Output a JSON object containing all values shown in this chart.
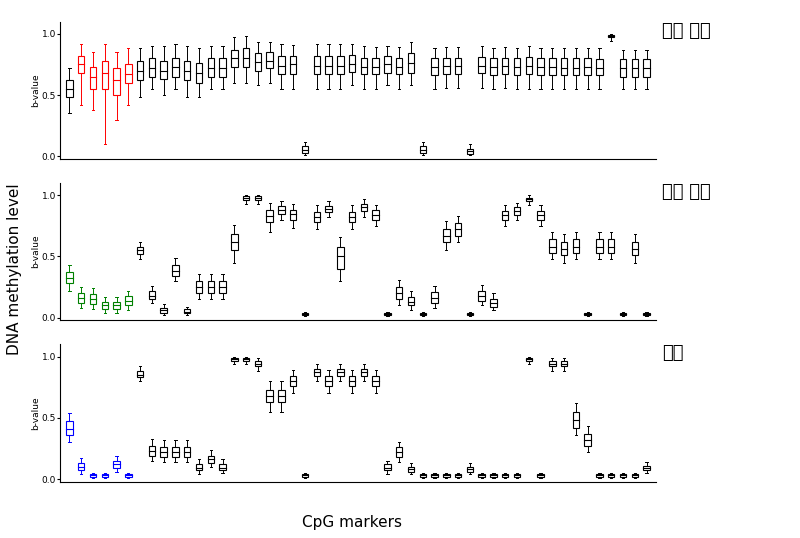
{
  "title_cancer": "간암 조직",
  "title_normal": "정상 조직",
  "title_blood": "혈액",
  "xlabel": "CpG markers",
  "ylabel": "DNA methylation level",
  "bvalue_label": "b-value",
  "n_markers": 50,
  "red_indices": [
    1,
    3,
    5,
    7
  ],
  "green_indices": [
    0,
    1,
    2,
    3,
    4,
    5
  ],
  "blue_indices": [
    0,
    1,
    2,
    3,
    4,
    5
  ],
  "cancer_boxes": [
    [
      0.35,
      0.48,
      0.55,
      0.62,
      0.72
    ],
    [
      0.42,
      0.68,
      0.75,
      0.82,
      0.92
    ],
    [
      0.38,
      0.55,
      0.65,
      0.73,
      0.85
    ],
    [
      0.1,
      0.55,
      0.68,
      0.78,
      0.92
    ],
    [
      0.3,
      0.5,
      0.62,
      0.72,
      0.85
    ],
    [
      0.42,
      0.6,
      0.67,
      0.75,
      0.88
    ],
    [
      0.48,
      0.62,
      0.7,
      0.78,
      0.88
    ],
    [
      0.55,
      0.65,
      0.72,
      0.8,
      0.9
    ],
    [
      0.5,
      0.63,
      0.7,
      0.78,
      0.9
    ],
    [
      0.55,
      0.65,
      0.73,
      0.8,
      0.92
    ],
    [
      0.48,
      0.62,
      0.7,
      0.78,
      0.9
    ],
    [
      0.48,
      0.6,
      0.68,
      0.76,
      0.88
    ],
    [
      0.55,
      0.65,
      0.72,
      0.8,
      0.9
    ],
    [
      0.55,
      0.65,
      0.72,
      0.8,
      0.9
    ],
    [
      0.6,
      0.73,
      0.8,
      0.87,
      0.97
    ],
    [
      0.6,
      0.73,
      0.8,
      0.88,
      0.98
    ],
    [
      0.58,
      0.7,
      0.77,
      0.84,
      0.93
    ],
    [
      0.6,
      0.72,
      0.78,
      0.85,
      0.93
    ],
    [
      0.55,
      0.67,
      0.74,
      0.82,
      0.92
    ],
    [
      0.55,
      0.67,
      0.75,
      0.82,
      0.91
    ],
    [
      0.01,
      0.03,
      0.05,
      0.08,
      0.12
    ],
    [
      0.55,
      0.67,
      0.74,
      0.82,
      0.92
    ],
    [
      0.55,
      0.67,
      0.74,
      0.82,
      0.92
    ],
    [
      0.55,
      0.67,
      0.74,
      0.82,
      0.92
    ],
    [
      0.58,
      0.69,
      0.75,
      0.83,
      0.92
    ],
    [
      0.55,
      0.67,
      0.73,
      0.8,
      0.9
    ],
    [
      0.55,
      0.67,
      0.73,
      0.8,
      0.89
    ],
    [
      0.58,
      0.68,
      0.75,
      0.82,
      0.9
    ],
    [
      0.55,
      0.67,
      0.73,
      0.8,
      0.89
    ],
    [
      0.58,
      0.68,
      0.76,
      0.84,
      0.93
    ],
    [
      0.01,
      0.03,
      0.05,
      0.08,
      0.12
    ],
    [
      0.55,
      0.66,
      0.73,
      0.8,
      0.88
    ],
    [
      0.56,
      0.67,
      0.74,
      0.8,
      0.89
    ],
    [
      0.56,
      0.67,
      0.74,
      0.8,
      0.89
    ],
    [
      0.01,
      0.02,
      0.04,
      0.06,
      0.1
    ],
    [
      0.56,
      0.68,
      0.74,
      0.81,
      0.9
    ],
    [
      0.55,
      0.66,
      0.73,
      0.8,
      0.88
    ],
    [
      0.56,
      0.67,
      0.74,
      0.8,
      0.89
    ],
    [
      0.55,
      0.66,
      0.73,
      0.8,
      0.88
    ],
    [
      0.55,
      0.67,
      0.74,
      0.81,
      0.9
    ],
    [
      0.55,
      0.66,
      0.73,
      0.8,
      0.88
    ],
    [
      0.55,
      0.66,
      0.73,
      0.8,
      0.88
    ],
    [
      0.55,
      0.66,
      0.72,
      0.8,
      0.88
    ],
    [
      0.55,
      0.66,
      0.72,
      0.8,
      0.88
    ],
    [
      0.55,
      0.66,
      0.73,
      0.8,
      0.88
    ],
    [
      0.55,
      0.66,
      0.72,
      0.79,
      0.88
    ],
    [
      0.94,
      0.97,
      0.98,
      0.99,
      1.0
    ],
    [
      0.55,
      0.65,
      0.72,
      0.79,
      0.87
    ],
    [
      0.55,
      0.65,
      0.72,
      0.79,
      0.87
    ],
    [
      0.55,
      0.65,
      0.72,
      0.79,
      0.87
    ]
  ],
  "normal_boxes": [
    [
      0.22,
      0.28,
      0.32,
      0.37,
      0.43
    ],
    [
      0.08,
      0.12,
      0.16,
      0.2,
      0.25
    ],
    [
      0.07,
      0.11,
      0.15,
      0.19,
      0.24
    ],
    [
      0.04,
      0.07,
      0.1,
      0.13,
      0.17
    ],
    [
      0.04,
      0.07,
      0.1,
      0.13,
      0.17
    ],
    [
      0.06,
      0.1,
      0.14,
      0.18,
      0.22
    ],
    [
      0.48,
      0.52,
      0.55,
      0.58,
      0.62
    ],
    [
      0.12,
      0.15,
      0.18,
      0.22,
      0.26
    ],
    [
      0.02,
      0.04,
      0.06,
      0.08,
      0.11
    ],
    [
      0.3,
      0.34,
      0.38,
      0.43,
      0.49
    ],
    [
      0.02,
      0.04,
      0.05,
      0.07,
      0.09
    ],
    [
      0.15,
      0.2,
      0.25,
      0.3,
      0.36
    ],
    [
      0.15,
      0.2,
      0.25,
      0.3,
      0.36
    ],
    [
      0.15,
      0.2,
      0.25,
      0.3,
      0.36
    ],
    [
      0.45,
      0.55,
      0.62,
      0.68,
      0.76
    ],
    [
      0.93,
      0.96,
      0.98,
      0.99,
      1.0
    ],
    [
      0.93,
      0.96,
      0.98,
      0.99,
      1.0
    ],
    [
      0.7,
      0.78,
      0.83,
      0.88,
      0.94
    ],
    [
      0.8,
      0.85,
      0.88,
      0.91,
      0.95
    ],
    [
      0.73,
      0.8,
      0.85,
      0.88,
      0.93
    ],
    [
      0.01,
      0.02,
      0.03,
      0.04,
      0.05
    ],
    [
      0.72,
      0.78,
      0.82,
      0.86,
      0.92
    ],
    [
      0.82,
      0.86,
      0.89,
      0.91,
      0.95
    ],
    [
      0.3,
      0.4,
      0.5,
      0.58,
      0.66
    ],
    [
      0.72,
      0.78,
      0.82,
      0.86,
      0.92
    ],
    [
      0.82,
      0.87,
      0.9,
      0.93,
      0.97
    ],
    [
      0.75,
      0.8,
      0.84,
      0.88,
      0.92
    ],
    [
      0.01,
      0.02,
      0.03,
      0.04,
      0.05
    ],
    [
      0.1,
      0.15,
      0.2,
      0.25,
      0.31
    ],
    [
      0.06,
      0.1,
      0.13,
      0.17,
      0.22
    ],
    [
      0.01,
      0.02,
      0.03,
      0.04,
      0.05
    ],
    [
      0.08,
      0.12,
      0.16,
      0.21,
      0.26
    ],
    [
      0.55,
      0.62,
      0.67,
      0.72,
      0.79
    ],
    [
      0.62,
      0.67,
      0.72,
      0.77,
      0.83
    ],
    [
      0.01,
      0.02,
      0.03,
      0.04,
      0.05
    ],
    [
      0.1,
      0.14,
      0.18,
      0.22,
      0.27
    ],
    [
      0.06,
      0.09,
      0.12,
      0.15,
      0.2
    ],
    [
      0.75,
      0.8,
      0.84,
      0.87,
      0.92
    ],
    [
      0.8,
      0.84,
      0.87,
      0.9,
      0.94
    ],
    [
      0.92,
      0.95,
      0.97,
      0.98,
      1.0
    ],
    [
      0.75,
      0.8,
      0.84,
      0.87,
      0.92
    ],
    [
      0.48,
      0.53,
      0.58,
      0.64,
      0.7
    ],
    [
      0.45,
      0.51,
      0.56,
      0.62,
      0.68
    ],
    [
      0.48,
      0.53,
      0.58,
      0.64,
      0.7
    ],
    [
      0.01,
      0.02,
      0.03,
      0.04,
      0.05
    ],
    [
      0.48,
      0.53,
      0.58,
      0.64,
      0.7
    ],
    [
      0.48,
      0.53,
      0.58,
      0.64,
      0.7
    ],
    [
      0.01,
      0.02,
      0.03,
      0.04,
      0.05
    ],
    [
      0.45,
      0.51,
      0.56,
      0.62,
      0.68
    ],
    [
      0.01,
      0.02,
      0.03,
      0.04,
      0.05
    ]
  ],
  "blood_boxes": [
    [
      0.3,
      0.36,
      0.41,
      0.47,
      0.54
    ],
    [
      0.04,
      0.07,
      0.1,
      0.13,
      0.17
    ],
    [
      0.01,
      0.02,
      0.03,
      0.04,
      0.05
    ],
    [
      0.01,
      0.02,
      0.03,
      0.04,
      0.05
    ],
    [
      0.06,
      0.09,
      0.12,
      0.15,
      0.19
    ],
    [
      0.01,
      0.02,
      0.03,
      0.04,
      0.05
    ],
    [
      0.8,
      0.83,
      0.85,
      0.88,
      0.92
    ],
    [
      0.15,
      0.19,
      0.23,
      0.27,
      0.33
    ],
    [
      0.14,
      0.18,
      0.22,
      0.26,
      0.32
    ],
    [
      0.14,
      0.18,
      0.22,
      0.26,
      0.32
    ],
    [
      0.14,
      0.18,
      0.22,
      0.26,
      0.32
    ],
    [
      0.04,
      0.07,
      0.09,
      0.12,
      0.16
    ],
    [
      0.1,
      0.13,
      0.16,
      0.19,
      0.24
    ],
    [
      0.05,
      0.07,
      0.09,
      0.12,
      0.16
    ],
    [
      0.94,
      0.96,
      0.98,
      0.99,
      1.0
    ],
    [
      0.94,
      0.96,
      0.98,
      0.99,
      1.0
    ],
    [
      0.88,
      0.92,
      0.94,
      0.96,
      0.99
    ],
    [
      0.55,
      0.63,
      0.68,
      0.73,
      0.8
    ],
    [
      0.55,
      0.63,
      0.68,
      0.73,
      0.8
    ],
    [
      0.7,
      0.76,
      0.8,
      0.84,
      0.89
    ],
    [
      0.01,
      0.02,
      0.03,
      0.04,
      0.05
    ],
    [
      0.8,
      0.84,
      0.87,
      0.9,
      0.94
    ],
    [
      0.7,
      0.76,
      0.8,
      0.84,
      0.89
    ],
    [
      0.8,
      0.84,
      0.87,
      0.9,
      0.94
    ],
    [
      0.7,
      0.76,
      0.8,
      0.84,
      0.89
    ],
    [
      0.8,
      0.84,
      0.87,
      0.9,
      0.94
    ],
    [
      0.7,
      0.76,
      0.8,
      0.84,
      0.89
    ],
    [
      0.04,
      0.07,
      0.09,
      0.12,
      0.15
    ],
    [
      0.14,
      0.18,
      0.22,
      0.26,
      0.3
    ],
    [
      0.04,
      0.06,
      0.08,
      0.1,
      0.13
    ],
    [
      0.01,
      0.02,
      0.03,
      0.04,
      0.05
    ],
    [
      0.01,
      0.02,
      0.03,
      0.04,
      0.05
    ],
    [
      0.01,
      0.02,
      0.03,
      0.04,
      0.05
    ],
    [
      0.01,
      0.02,
      0.03,
      0.04,
      0.05
    ],
    [
      0.04,
      0.06,
      0.08,
      0.1,
      0.13
    ],
    [
      0.01,
      0.02,
      0.03,
      0.04,
      0.05
    ],
    [
      0.01,
      0.02,
      0.03,
      0.04,
      0.05
    ],
    [
      0.01,
      0.02,
      0.03,
      0.04,
      0.05
    ],
    [
      0.01,
      0.02,
      0.03,
      0.04,
      0.05
    ],
    [
      0.94,
      0.96,
      0.98,
      0.99,
      1.0
    ],
    [
      0.01,
      0.02,
      0.03,
      0.04,
      0.05
    ],
    [
      0.88,
      0.92,
      0.94,
      0.96,
      0.99
    ],
    [
      0.88,
      0.92,
      0.94,
      0.96,
      0.99
    ],
    [
      0.36,
      0.42,
      0.48,
      0.55,
      0.62
    ],
    [
      0.22,
      0.27,
      0.32,
      0.37,
      0.43
    ],
    [
      0.01,
      0.02,
      0.03,
      0.04,
      0.05
    ],
    [
      0.01,
      0.02,
      0.03,
      0.04,
      0.05
    ],
    [
      0.01,
      0.02,
      0.03,
      0.04,
      0.05
    ],
    [
      0.01,
      0.02,
      0.03,
      0.04,
      0.05
    ],
    [
      0.05,
      0.07,
      0.09,
      0.11,
      0.14
    ]
  ]
}
